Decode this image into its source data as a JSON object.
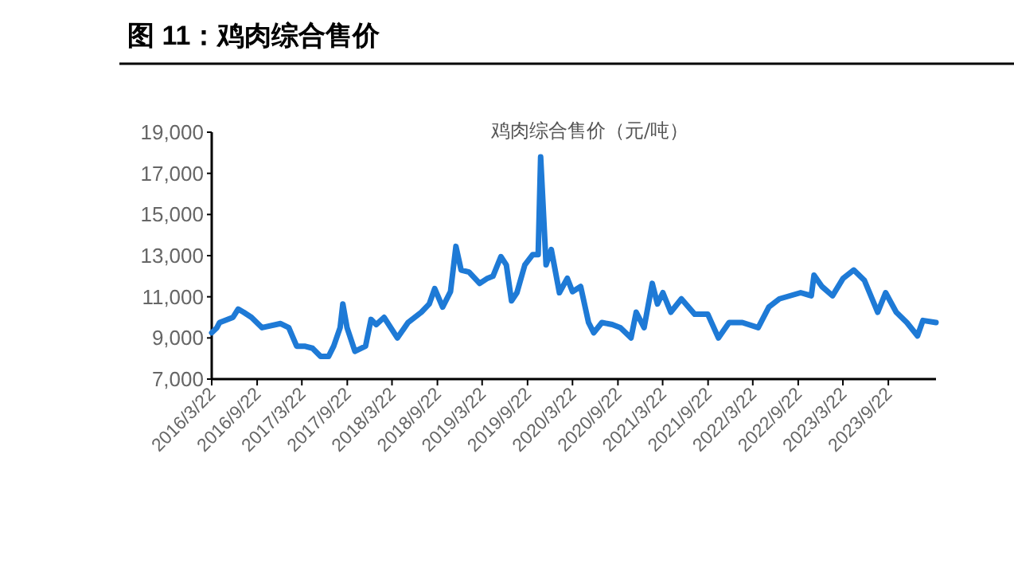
{
  "chart_data": {
    "type": "line",
    "title": "图 11：鸡肉综合售价",
    "subtitle": "鸡肉综合售价（元/吨）",
    "x": [
      "2016-03-22",
      "2016-04-12",
      "2016-04-23",
      "2016-06-16",
      "2016-07-07",
      "2016-07-29",
      "2016-08-30",
      "2016-10-12",
      "2016-12-26",
      "2017-01-28",
      "2017-03-01",
      "2017-04-02",
      "2017-05-04",
      "2017-06-06",
      "2017-07-08",
      "2017-07-29",
      "2017-08-24",
      "2017-09-04",
      "2017-09-21",
      "2017-10-23",
      "2017-12-05",
      "2017-12-27",
      "2018-01-17",
      "2018-02-18",
      "2018-04-13",
      "2018-05-26",
      "2018-07-19",
      "2018-08-20",
      "2018-09-11",
      "2018-10-13",
      "2018-11-14",
      "2018-12-06",
      "2018-12-27",
      "2019-01-28",
      "2019-03-12",
      "2019-04-13",
      "2019-05-05",
      "2019-06-06",
      "2019-06-28",
      "2019-07-19",
      "2019-08-10",
      "2019-09-11",
      "2019-10-13",
      "2019-11-04",
      "2019-11-14",
      "2019-12-06",
      "2019-12-27",
      "2020-01-29",
      "2020-03-01",
      "2020-03-22",
      "2020-04-24",
      "2020-05-26",
      "2020-06-16",
      "2020-07-19",
      "2020-08-30",
      "2020-10-02",
      "2020-11-14",
      "2020-12-05",
      "2021-01-06",
      "2021-02-08",
      "2021-03-01",
      "2021-03-23",
      "2021-04-24",
      "2021-06-06",
      "2021-07-30",
      "2021-09-21",
      "2021-11-03",
      "2021-12-16",
      "2022-02-08",
      "2022-04-13",
      "2022-05-26",
      "2022-07-08",
      "2022-10-02",
      "2022-11-14",
      "2022-11-25",
      "2022-12-27",
      "2023-02-08",
      "2023-03-23",
      "2023-05-05",
      "2023-06-17",
      "2023-08-10",
      "2023-09-11",
      "2023-10-24",
      "2023-12-06",
      "2024-01-18",
      "2024-02-09",
      "2024-04-02"
    ],
    "series": [
      {
        "color": "#1e7ad6",
        "values": [
          9250,
          9500,
          9750,
          10000,
          10400,
          10250,
          10000,
          9500,
          9700,
          9500,
          8600,
          8600,
          8500,
          8100,
          8100,
          8600,
          9500,
          10650,
          9500,
          8350,
          8600,
          9900,
          9650,
          10000,
          9000,
          9750,
          10250,
          10650,
          11400,
          10500,
          11250,
          13450,
          12300,
          12200,
          11650,
          11900,
          12000,
          12950,
          12550,
          10800,
          11200,
          12550,
          13050,
          13050,
          17800,
          12550,
          13300,
          11200,
          11900,
          11250,
          11500,
          9750,
          9250,
          9750,
          9650,
          9500,
          9000,
          10250,
          9500,
          11650,
          10650,
          11200,
          10250,
          10900,
          10150,
          10150,
          9000,
          9750,
          9750,
          9500,
          10500,
          10900,
          11200,
          11050,
          12050,
          11500,
          11050,
          11900,
          12300,
          11800,
          10250,
          11200,
          10250,
          9750,
          9100,
          9850,
          9750
        ]
      }
    ],
    "xlim": [
      "2016-03-22",
      "2024-04-02"
    ],
    "xticks": [
      {
        "value": "2016-03-22",
        "label": "2016/3/22"
      },
      {
        "value": "2016-09-22",
        "label": "2016/9/22"
      },
      {
        "value": "2017-03-22",
        "label": "2017/3/22"
      },
      {
        "value": "2017-09-22",
        "label": "2017/9/22"
      },
      {
        "value": "2018-03-22",
        "label": "2018/3/22"
      },
      {
        "value": "2018-09-22",
        "label": "2018/9/22"
      },
      {
        "value": "2019-03-22",
        "label": "2019/3/22"
      },
      {
        "value": "2019-09-22",
        "label": "2019/9/22"
      },
      {
        "value": "2020-03-22",
        "label": "2020/3/22"
      },
      {
        "value": "2020-09-22",
        "label": "2020/9/22"
      },
      {
        "value": "2021-03-22",
        "label": "2021/3/22"
      },
      {
        "value": "2021-09-22",
        "label": "2021/9/22"
      },
      {
        "value": "2022-03-22",
        "label": "2022/3/22"
      },
      {
        "value": "2022-09-22",
        "label": "2022/9/22"
      },
      {
        "value": "2023-03-22",
        "label": "2023/3/22"
      },
      {
        "value": "2023-09-22",
        "label": "2023/9/22"
      }
    ],
    "ylim": [
      7000,
      19000
    ],
    "yticks": [
      {
        "value": 7000,
        "label": "7,000"
      },
      {
        "value": 9000,
        "label": "9,000"
      },
      {
        "value": 11000,
        "label": "11,000"
      },
      {
        "value": 13000,
        "label": "13,000"
      },
      {
        "value": 15000,
        "label": "15,000"
      },
      {
        "value": 17000,
        "label": "17,000"
      },
      {
        "value": 19000,
        "label": "19,000"
      }
    ],
    "grid": false,
    "marker": "none",
    "line_style": "solid"
  }
}
